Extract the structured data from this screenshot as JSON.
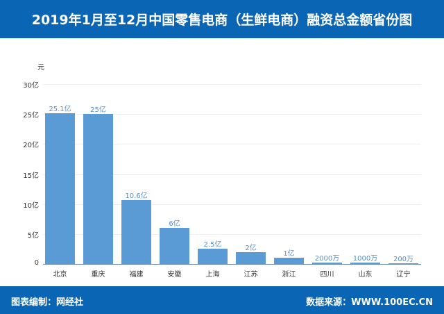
{
  "header": {
    "title": "2019年1月至12月中国零售电商（生鲜电商）融资总金额省份图"
  },
  "footer": {
    "left": "图表编制：网经社",
    "right": "数据来源：WWW.100EC.CN"
  },
  "colors": {
    "banner": "#0a66b5",
    "bar": "#5b9bd5",
    "label": "#5b8fc7"
  },
  "chart_data": {
    "type": "bar",
    "title": "2019年1月至12月中国零售电商（生鲜电商）融资总金额省份图",
    "xlabel": "",
    "ylabel": "元",
    "ylim": [
      0,
      30
    ],
    "y_unit": "亿元",
    "yticks": [
      "0",
      "5亿",
      "10亿",
      "15亿",
      "20亿",
      "25亿",
      "30亿"
    ],
    "grid": true,
    "legend": null,
    "categories": [
      "北京",
      "重庆",
      "福建",
      "安徽",
      "上海",
      "江苏",
      "浙江",
      "四川",
      "山东",
      "辽宁"
    ],
    "values": [
      25.1,
      25,
      10.6,
      6,
      2.5,
      2,
      1,
      0.2,
      0.1,
      0.02
    ],
    "data_labels": [
      "25.1亿",
      "25亿",
      "10.6亿",
      "6亿",
      "2.5亿",
      "2亿",
      "1亿",
      "2000万",
      "1000万",
      "200万"
    ]
  }
}
